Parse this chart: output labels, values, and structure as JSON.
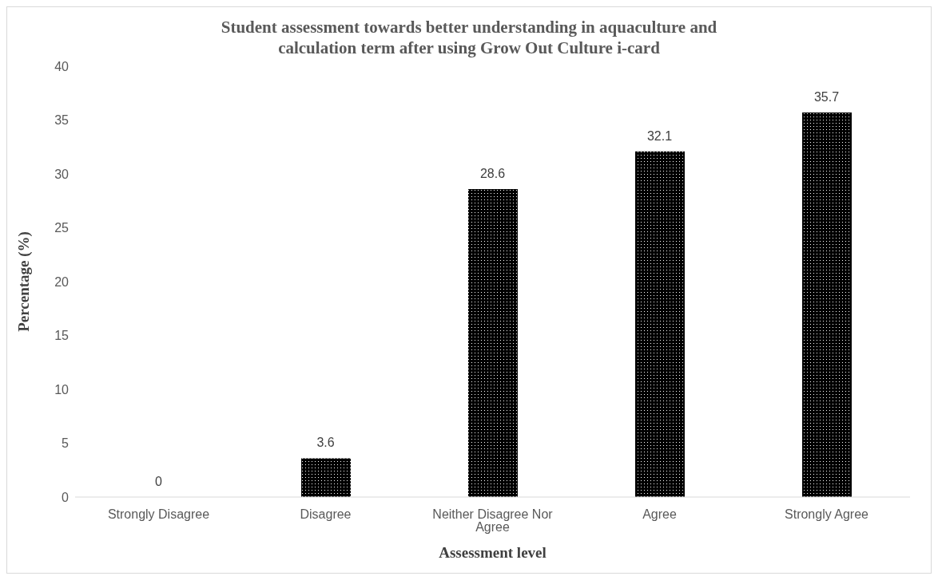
{
  "chart_data": {
    "type": "bar",
    "title": "Student assessment towards better understanding in aquaculture and calculation term after using Grow Out Culture i-card",
    "xlabel": "Assessment level",
    "ylabel": "Percentage (%)",
    "categories": [
      "Strongly Disagree",
      "Disagree",
      "Neither Disagree Nor Agree",
      "Agree",
      "Strongly Agree"
    ],
    "values": [
      0,
      3.6,
      28.6,
      32.1,
      35.7
    ],
    "color": "#000000",
    "ylim": [
      0,
      40
    ],
    "yticks": [
      0,
      5,
      10,
      15,
      20,
      25,
      30,
      35,
      40
    ],
    "data_labels": true,
    "grid": false
  }
}
